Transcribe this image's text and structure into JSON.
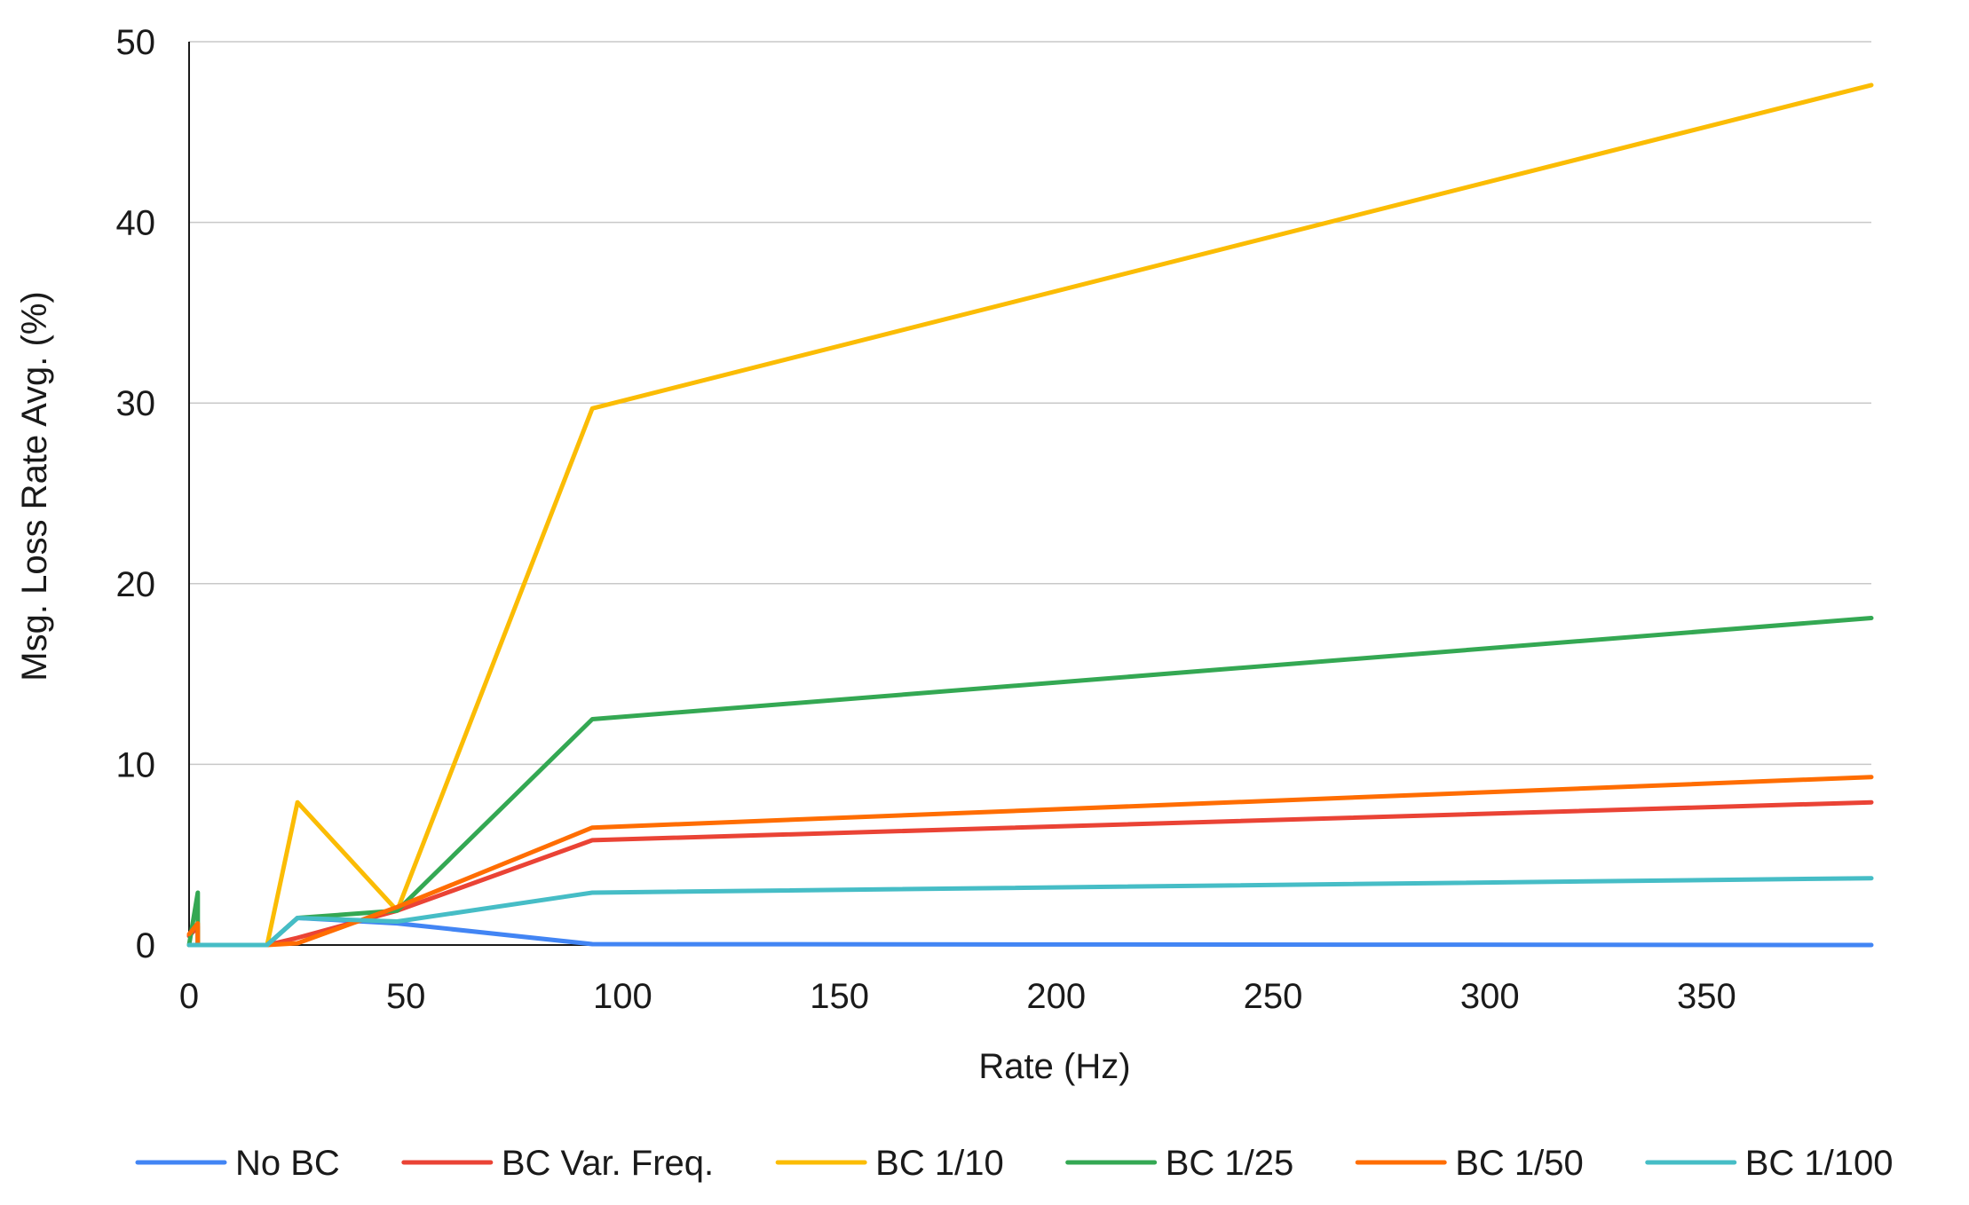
{
  "chart_data": {
    "type": "line",
    "title": "",
    "xlabel": "Rate (Hz)",
    "ylabel": "Msg. Loss Rate Avg. (%)",
    "xlim": [
      0,
      388
    ],
    "ylim": [
      0,
      50
    ],
    "x_ticks": [
      "0",
      "50",
      "100",
      "150",
      "200",
      "250",
      "300",
      "350"
    ],
    "y_ticks": [
      "0",
      "10",
      "20",
      "30",
      "40",
      "50"
    ],
    "grid": true,
    "legend_position": "bottom",
    "series": [
      {
        "name": "No BC",
        "color": "#4285F4",
        "points": [
          [
            0,
            0
          ],
          [
            2,
            0
          ],
          [
            18,
            0
          ],
          [
            25,
            1.5
          ],
          [
            48,
            1.2
          ],
          [
            93,
            0.05
          ],
          [
            388,
            0
          ]
        ]
      },
      {
        "name": "BC Var. Freq.",
        "color": "#EA4335",
        "points": [
          [
            0,
            0.5
          ],
          [
            2,
            1.0
          ],
          [
            2,
            0
          ],
          [
            18,
            0
          ],
          [
            25,
            0.4
          ],
          [
            48,
            1.9
          ],
          [
            93,
            5.8
          ],
          [
            388,
            7.9
          ]
        ]
      },
      {
        "name": "BC 1/10",
        "color": "#FBBC04",
        "points": [
          [
            0,
            0
          ],
          [
            2,
            0
          ],
          [
            18,
            0
          ],
          [
            25,
            7.9
          ],
          [
            48,
            1.9
          ],
          [
            93,
            29.7
          ],
          [
            388,
            47.6
          ]
        ]
      },
      {
        "name": "BC 1/25",
        "color": "#34A853",
        "points": [
          [
            0,
            0
          ],
          [
            2,
            2.9
          ],
          [
            2,
            0
          ],
          [
            18,
            0
          ],
          [
            25,
            1.5
          ],
          [
            48,
            1.9
          ],
          [
            93,
            12.5
          ],
          [
            388,
            18.1
          ]
        ]
      },
      {
        "name": "BC 1/50",
        "color": "#FF6D01",
        "points": [
          [
            0,
            0.6
          ],
          [
            2,
            1.2
          ],
          [
            2,
            0
          ],
          [
            18,
            0
          ],
          [
            25,
            0.1
          ],
          [
            48,
            2.1
          ],
          [
            93,
            6.5
          ],
          [
            388,
            9.3
          ]
        ]
      },
      {
        "name": "BC 1/100",
        "color": "#46BDC6",
        "points": [
          [
            0,
            0
          ],
          [
            2,
            0
          ],
          [
            18,
            0
          ],
          [
            25,
            1.5
          ],
          [
            48,
            1.3
          ],
          [
            93,
            2.9
          ],
          [
            388,
            3.7
          ]
        ]
      }
    ]
  }
}
